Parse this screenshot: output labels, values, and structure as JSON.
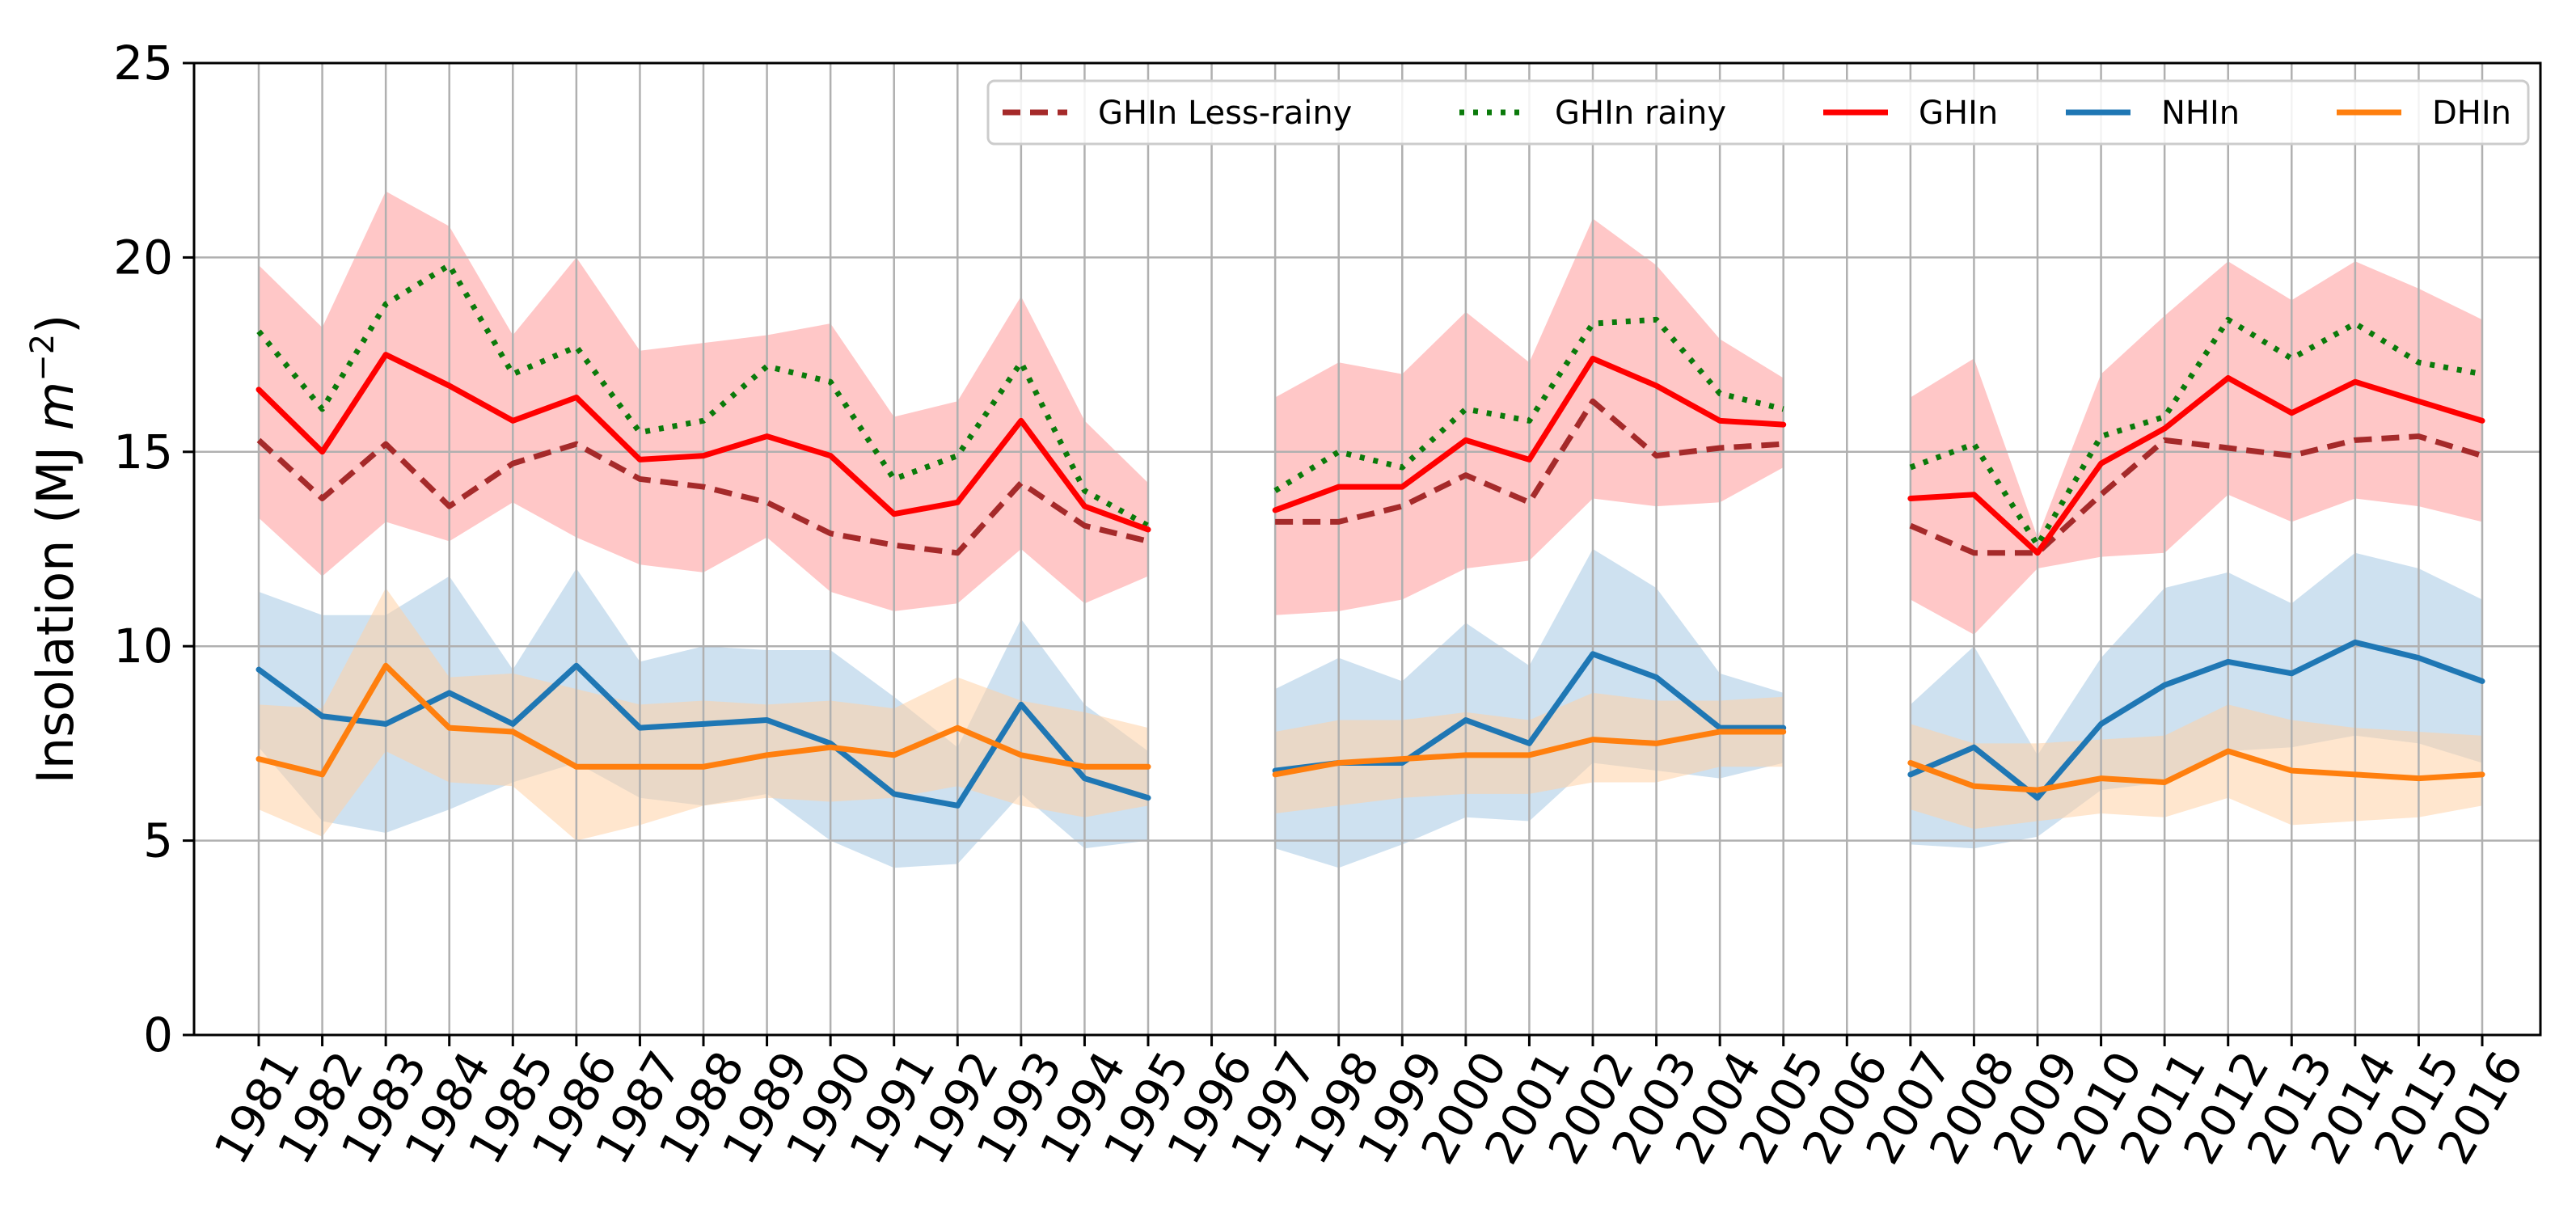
{
  "chart_data": {
    "type": "line",
    "title": "",
    "xlabel": "",
    "ylabel": "Insolation (MJ m⁻²)",
    "ylabel_parts": {
      "prefix": "Insolation (MJ ",
      "unit": "m",
      "exponent": "−2",
      "suffix": ")"
    },
    "ylim": [
      0,
      25
    ],
    "yticks": [
      "0",
      "5",
      "10",
      "15",
      "20",
      "25"
    ],
    "grid": true,
    "legend_position": "top-right",
    "x": [
      "1981",
      "1982",
      "1983",
      "1984",
      "1985",
      "1986",
      "1987",
      "1988",
      "1989",
      "1990",
      "1991",
      "1992",
      "1993",
      "1994",
      "1995",
      "1996",
      "1997",
      "1998",
      "1999",
      "2000",
      "2001",
      "2002",
      "2003",
      "2004",
      "2005",
      "2006",
      "2007",
      "2008",
      "2009",
      "2010",
      "2011",
      "2012",
      "2013",
      "2014",
      "2015",
      "2016"
    ],
    "series": [
      {
        "name": "GHIn Less-rainy",
        "color": "#a52a2a",
        "style": "dashed",
        "values": [
          15.3,
          13.8,
          15.2,
          13.6,
          14.7,
          15.2,
          14.3,
          14.1,
          13.7,
          12.9,
          12.6,
          12.4,
          14.2,
          13.1,
          12.7,
          null,
          13.2,
          13.2,
          13.6,
          14.4,
          13.7,
          16.3,
          14.9,
          15.1,
          15.2,
          null,
          13.1,
          12.4,
          12.4,
          13.9,
          15.3,
          15.1,
          14.9,
          15.3,
          15.4,
          14.9
        ]
      },
      {
        "name": "GHIn rainy",
        "color": "#0a7a0a",
        "style": "dotted",
        "values": [
          18.1,
          16.1,
          18.8,
          19.8,
          17.0,
          17.7,
          15.5,
          15.8,
          17.2,
          16.8,
          14.3,
          14.9,
          17.3,
          14.0,
          13.1,
          null,
          14.0,
          15.0,
          14.6,
          16.1,
          15.8,
          18.3,
          18.4,
          16.5,
          16.1,
          null,
          14.6,
          15.2,
          12.6,
          15.4,
          15.9,
          18.4,
          17.4,
          18.3,
          17.3,
          17.0
        ]
      },
      {
        "name": "GHIn",
        "color": "#ff0000",
        "style": "solid",
        "values": [
          16.6,
          15.0,
          17.5,
          16.7,
          15.8,
          16.4,
          14.8,
          14.9,
          15.4,
          14.9,
          13.4,
          13.7,
          15.8,
          13.6,
          13.0,
          null,
          13.5,
          14.1,
          14.1,
          15.3,
          14.8,
          17.4,
          16.7,
          15.8,
          15.7,
          null,
          13.8,
          13.9,
          12.4,
          14.7,
          15.6,
          16.9,
          16.0,
          16.8,
          16.3,
          15.8
        ]
      },
      {
        "name": "NHIn",
        "color": "#1f77b4",
        "style": "solid",
        "values": [
          9.4,
          8.2,
          8.0,
          8.8,
          8.0,
          9.5,
          7.9,
          8.0,
          8.1,
          7.5,
          6.2,
          5.9,
          8.5,
          6.6,
          6.1,
          null,
          6.8,
          7.0,
          7.0,
          8.1,
          7.5,
          9.8,
          9.2,
          7.9,
          7.9,
          null,
          6.7,
          7.4,
          6.1,
          8.0,
          9.0,
          9.6,
          9.3,
          10.1,
          9.7,
          9.1
        ]
      },
      {
        "name": "DHIn",
        "color": "#ff7f0e",
        "style": "solid",
        "values": [
          7.1,
          6.7,
          9.5,
          7.9,
          7.8,
          6.9,
          6.9,
          6.9,
          7.2,
          7.4,
          7.2,
          7.9,
          7.2,
          6.9,
          6.9,
          null,
          6.7,
          7.0,
          7.1,
          7.2,
          7.2,
          7.6,
          7.5,
          7.8,
          7.8,
          null,
          7.0,
          6.4,
          6.3,
          6.6,
          6.5,
          7.3,
          6.8,
          6.7,
          6.6,
          6.7
        ]
      }
    ],
    "bands": [
      {
        "series": "GHIn",
        "color": "#ff9999",
        "upper": [
          19.8,
          18.2,
          21.7,
          20.8,
          18.0,
          20.0,
          17.6,
          17.8,
          18.0,
          18.3,
          15.9,
          16.3,
          19.0,
          15.8,
          14.2,
          null,
          16.4,
          17.3,
          17.0,
          18.6,
          17.3,
          21.0,
          19.8,
          17.9,
          16.9,
          null,
          16.4,
          17.4,
          12.8,
          17.0,
          18.5,
          19.9,
          18.9,
          19.9,
          19.2,
          18.4
        ],
        "lower": [
          13.3,
          11.8,
          13.2,
          12.7,
          13.7,
          12.8,
          12.1,
          11.9,
          12.8,
          11.4,
          10.9,
          11.1,
          12.5,
          11.1,
          11.8,
          null,
          10.8,
          10.9,
          11.2,
          12.0,
          12.2,
          13.8,
          13.6,
          13.7,
          14.6,
          null,
          11.2,
          10.3,
          12.0,
          12.3,
          12.4,
          13.9,
          13.2,
          13.8,
          13.6,
          13.2
        ]
      },
      {
        "series": "NHIn",
        "color": "#a6c8e3",
        "upper": [
          11.4,
          10.8,
          10.8,
          11.8,
          9.4,
          12.0,
          9.6,
          10.0,
          9.9,
          9.9,
          8.7,
          7.4,
          10.7,
          8.5,
          7.3,
          null,
          8.9,
          9.7,
          9.1,
          10.6,
          9.5,
          12.5,
          11.5,
          9.3,
          8.8,
          null,
          8.5,
          10.0,
          7.2,
          9.7,
          11.5,
          11.9,
          11.1,
          12.4,
          12.0,
          11.2
        ],
        "lower": [
          7.4,
          5.5,
          5.2,
          5.8,
          6.5,
          7.0,
          6.1,
          5.9,
          6.2,
          5.0,
          4.3,
          4.4,
          6.2,
          4.8,
          5.0,
          null,
          4.8,
          4.3,
          4.9,
          5.6,
          5.5,
          7.0,
          6.8,
          6.6,
          7.0,
          null,
          4.9,
          4.8,
          5.1,
          6.3,
          6.5,
          7.3,
          7.4,
          7.7,
          7.5,
          7.0
        ]
      },
      {
        "series": "DHIn",
        "color": "#ffd2a6",
        "upper": [
          8.5,
          8.4,
          11.5,
          9.2,
          9.3,
          8.9,
          8.5,
          8.6,
          8.5,
          8.6,
          8.4,
          9.2,
          8.6,
          8.3,
          7.9,
          null,
          7.8,
          8.1,
          8.1,
          8.3,
          8.1,
          8.8,
          8.6,
          8.6,
          8.7,
          null,
          8.0,
          7.5,
          7.5,
          7.6,
          7.7,
          8.5,
          8.1,
          7.9,
          7.8,
          7.7
        ],
        "lower": [
          5.8,
          5.1,
          7.3,
          6.5,
          6.4,
          5.0,
          5.4,
          5.9,
          6.1,
          6.0,
          6.1,
          6.4,
          5.9,
          5.6,
          5.9,
          null,
          5.7,
          5.9,
          6.1,
          6.2,
          6.2,
          6.5,
          6.5,
          6.9,
          6.9,
          null,
          5.8,
          5.3,
          5.5,
          5.7,
          5.6,
          6.1,
          5.4,
          5.5,
          5.6,
          5.9
        ]
      }
    ],
    "legend": [
      "GHIn Less-rainy",
      "GHIn rainy",
      "GHIn",
      "NHIn",
      "DHIn"
    ]
  }
}
